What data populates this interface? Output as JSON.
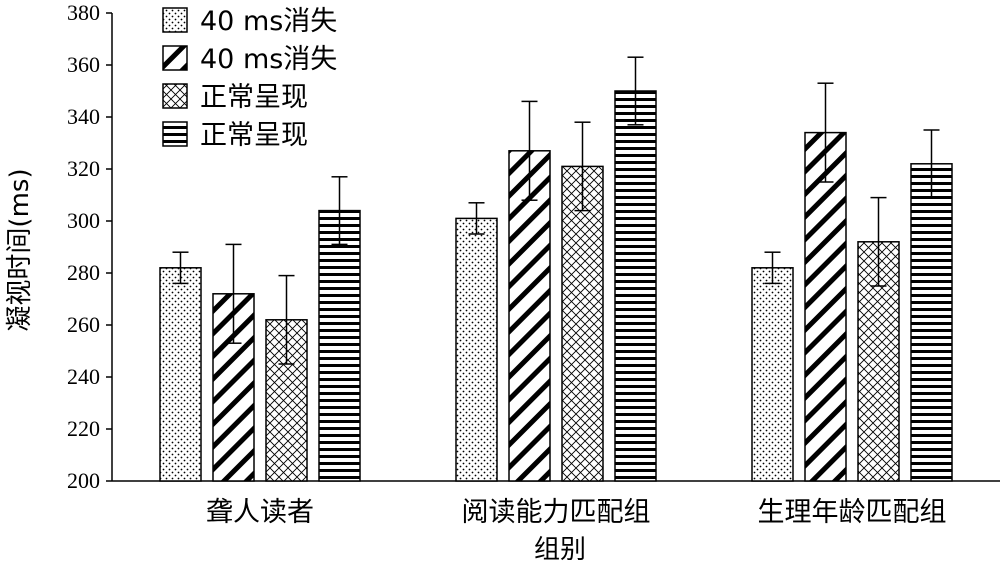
{
  "chart_data": {
    "type": "bar",
    "title": "",
    "xlabel": "组别",
    "ylabel": "凝视时间(ms)",
    "ylim": [
      200,
      380
    ],
    "yticks": [
      200,
      220,
      240,
      260,
      280,
      300,
      320,
      340,
      360,
      380
    ],
    "categories": [
      "聋人读者",
      "阅读能力匹配组",
      "生理年龄匹配组"
    ],
    "legend_position": "top-left",
    "grid": false,
    "series": [
      {
        "name": "40 ms消失",
        "pattern": "dots",
        "values": [
          282,
          301,
          282
        ],
        "errors": [
          6,
          6,
          6
        ]
      },
      {
        "name": "40 ms消失",
        "pattern": "diagonal",
        "values": [
          272,
          327,
          334
        ],
        "errors": [
          19,
          19,
          19
        ]
      },
      {
        "name": "正常呈现",
        "pattern": "crosshatch",
        "values": [
          262,
          321,
          292
        ],
        "errors": [
          17,
          17,
          17
        ]
      },
      {
        "name": "正常呈现",
        "pattern": "horizontal",
        "values": [
          304,
          350,
          322
        ],
        "errors": [
          13,
          13,
          13
        ]
      }
    ]
  }
}
